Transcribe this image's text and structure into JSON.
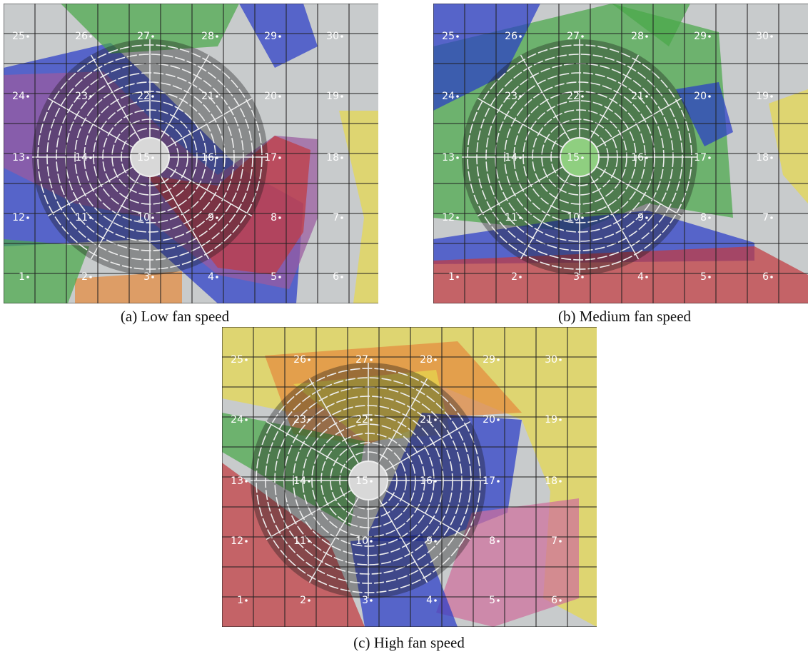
{
  "panels": [
    {
      "caption": "(a) Low fan speed",
      "points": [
        1,
        2,
        3,
        4,
        5,
        6,
        7,
        8,
        9,
        10,
        11,
        12,
        13,
        14,
        15,
        16,
        17,
        18,
        19,
        20,
        21,
        22,
        23,
        24,
        25,
        26,
        27,
        28,
        29,
        30
      ]
    },
    {
      "caption": "(b) Medium fan speed",
      "points": [
        1,
        2,
        3,
        4,
        5,
        6,
        7,
        8,
        9,
        10,
        11,
        12,
        13,
        14,
        15,
        16,
        17,
        18,
        19,
        20,
        21,
        22,
        23,
        24,
        25,
        26,
        27,
        28,
        29,
        30
      ]
    },
    {
      "caption": "(c) High fan speed",
      "points": [
        1,
        2,
        3,
        4,
        5,
        6,
        7,
        8,
        9,
        10,
        11,
        12,
        13,
        14,
        15,
        16,
        17,
        18,
        19,
        20,
        21,
        22,
        23,
        24,
        25,
        26,
        27,
        28,
        29,
        30
      ]
    }
  ]
}
